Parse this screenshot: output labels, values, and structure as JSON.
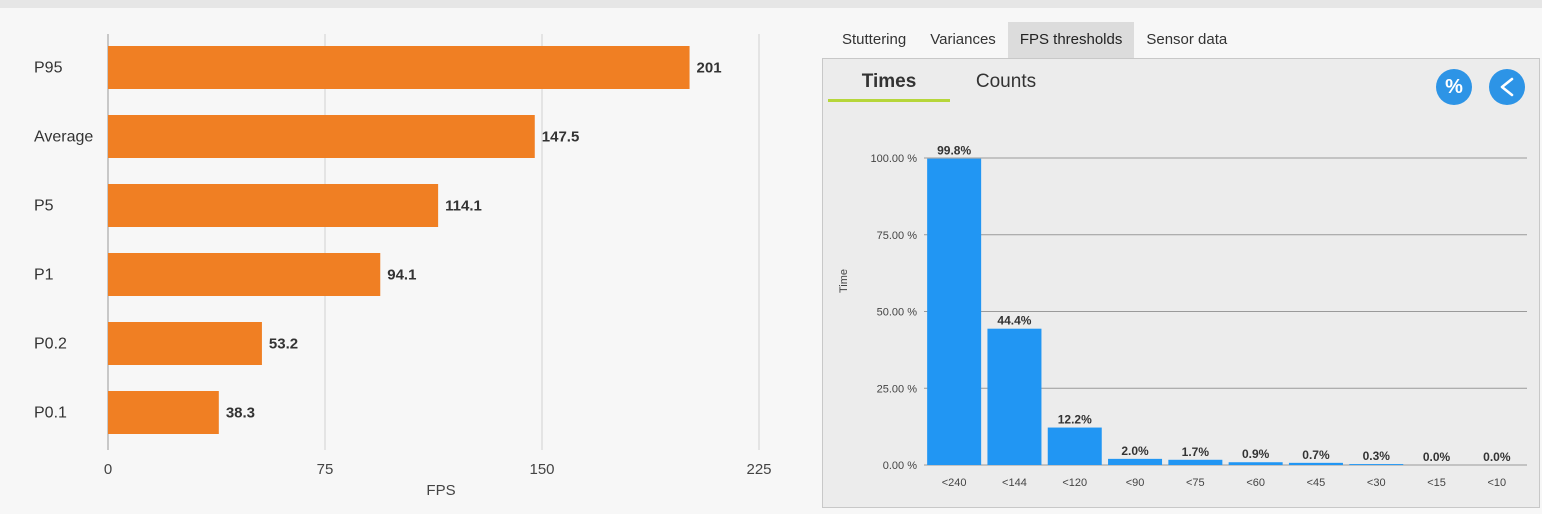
{
  "left_chart": {
    "chart_data": {
      "type": "bar",
      "orientation": "horizontal",
      "categories": [
        "P95",
        "Average",
        "P5",
        "P1",
        "P0.2",
        "P0.1"
      ],
      "values": [
        201,
        147.5,
        114.1,
        94.1,
        53.2,
        38.3
      ],
      "value_labels": [
        "201",
        "147.5",
        "114.1",
        "94.1",
        "53.2",
        "38.3"
      ],
      "xlabel": "FPS",
      "xlim": [
        0,
        225
      ],
      "xticks": [
        0,
        75,
        150,
        225
      ],
      "xtick_labels": [
        "0",
        "75",
        "150",
        "225"
      ],
      "color": "#f07f23"
    }
  },
  "tabs": [
    {
      "label": "Stuttering",
      "active": false
    },
    {
      "label": "Variances",
      "active": false
    },
    {
      "label": "FPS thresholds",
      "active": true
    },
    {
      "label": "Sensor data",
      "active": false
    }
  ],
  "panel": {
    "subtabs": {
      "times": "Times",
      "counts": "Counts"
    },
    "buttons": {
      "percent": "%",
      "back": "<"
    },
    "chart_data": {
      "type": "bar",
      "categories": [
        "<240",
        "<144",
        "<120",
        "<90",
        "<75",
        "<60",
        "<45",
        "<30",
        "<15",
        "<10"
      ],
      "values": [
        99.8,
        44.4,
        12.2,
        2.0,
        1.7,
        0.9,
        0.7,
        0.3,
        0.0,
        0.0
      ],
      "value_labels": [
        "99.8%",
        "44.4%",
        "12.2%",
        "2.0%",
        "1.7%",
        "0.9%",
        "0.7%",
        "0.3%",
        "0.0%",
        "0.0%"
      ],
      "ylabel": "Time",
      "ylim": [
        0,
        100
      ],
      "yticks": [
        0,
        25,
        50,
        75,
        100
      ],
      "ytick_labels": [
        "0.00 %",
        "25.00 %",
        "50.00 %",
        "75.00 %",
        "100.00 %"
      ],
      "color": "#2196f3"
    }
  }
}
